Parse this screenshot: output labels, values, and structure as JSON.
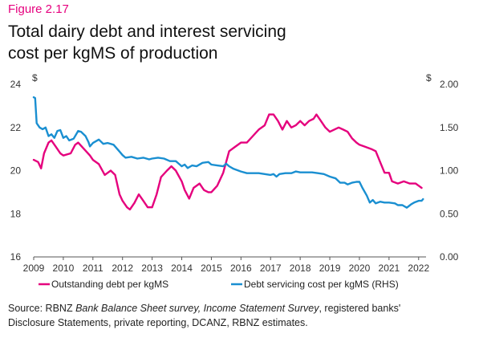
{
  "figure_label": "Figure 2.17",
  "title_line1": "Total dairy debt and interest servicing",
  "title_line2": "cost per kgMS of production",
  "source": {
    "prefix": "Source: RBNZ ",
    "italic1": "Bank Balance Sheet survey, Income Statement Survey",
    "middle": ", registered banks'",
    "line2": "Disclosure Statements, private reporting, DCANZ, RBNZ estimates."
  },
  "colors": {
    "debt": "#e5007d",
    "servicing": "#1a8fd1",
    "axis": "#333333"
  },
  "chart_data": {
    "type": "line",
    "title": "Total dairy debt and interest servicing cost per kgMS of production",
    "x_ticks": [
      "2009",
      "2010",
      "2011",
      "2012",
      "2013",
      "2014",
      "2015",
      "2016",
      "2017",
      "2018",
      "2019",
      "2020",
      "2021",
      "2022"
    ],
    "xlim": [
      2009,
      2022.25
    ],
    "y_left": {
      "unit": "$",
      "ticks": [
        "16",
        "18",
        "20",
        "22",
        "24"
      ],
      "ylim": [
        16,
        24
      ]
    },
    "y_right": {
      "unit": "$",
      "ticks": [
        "0.00",
        "0.50",
        "1.00",
        "1.50",
        "2.00"
      ],
      "ylim": [
        0,
        2
      ]
    },
    "legend_position": "bottom",
    "series": [
      {
        "name": "Outstanding debt per kgMS",
        "axis": "left",
        "points": [
          [
            2009.0,
            20.5
          ],
          [
            2009.15,
            20.4
          ],
          [
            2009.25,
            20.1
          ],
          [
            2009.35,
            20.8
          ],
          [
            2009.5,
            21.3
          ],
          [
            2009.6,
            21.4
          ],
          [
            2009.75,
            21.1
          ],
          [
            2009.9,
            20.8
          ],
          [
            2010.0,
            20.7
          ],
          [
            2010.25,
            20.8
          ],
          [
            2010.4,
            21.2
          ],
          [
            2010.5,
            21.3
          ],
          [
            2010.7,
            21.0
          ],
          [
            2010.9,
            20.7
          ],
          [
            2011.0,
            20.5
          ],
          [
            2011.2,
            20.3
          ],
          [
            2011.4,
            19.8
          ],
          [
            2011.5,
            19.9
          ],
          [
            2011.6,
            20.0
          ],
          [
            2011.75,
            19.8
          ],
          [
            2011.9,
            18.9
          ],
          [
            2012.0,
            18.6
          ],
          [
            2012.15,
            18.3
          ],
          [
            2012.25,
            18.2
          ],
          [
            2012.4,
            18.5
          ],
          [
            2012.55,
            18.9
          ],
          [
            2012.7,
            18.6
          ],
          [
            2012.85,
            18.3
          ],
          [
            2013.0,
            18.3
          ],
          [
            2013.15,
            18.9
          ],
          [
            2013.3,
            19.7
          ],
          [
            2013.5,
            20.0
          ],
          [
            2013.65,
            20.2
          ],
          [
            2013.8,
            20.0
          ],
          [
            2014.0,
            19.5
          ],
          [
            2014.1,
            19.1
          ],
          [
            2014.25,
            18.7
          ],
          [
            2014.4,
            19.2
          ],
          [
            2014.6,
            19.4
          ],
          [
            2014.75,
            19.1
          ],
          [
            2014.9,
            19.0
          ],
          [
            2015.0,
            19.0
          ],
          [
            2015.2,
            19.3
          ],
          [
            2015.4,
            19.9
          ],
          [
            2015.6,
            20.9
          ],
          [
            2015.8,
            21.1
          ],
          [
            2016.0,
            21.3
          ],
          [
            2016.2,
            21.3
          ],
          [
            2016.4,
            21.6
          ],
          [
            2016.6,
            21.9
          ],
          [
            2016.8,
            22.1
          ],
          [
            2016.95,
            22.6
          ],
          [
            2017.1,
            22.6
          ],
          [
            2017.25,
            22.3
          ],
          [
            2017.4,
            21.9
          ],
          [
            2017.55,
            22.3
          ],
          [
            2017.7,
            22.0
          ],
          [
            2017.85,
            22.1
          ],
          [
            2018.0,
            22.3
          ],
          [
            2018.15,
            22.1
          ],
          [
            2018.3,
            22.3
          ],
          [
            2018.45,
            22.4
          ],
          [
            2018.55,
            22.6
          ],
          [
            2018.7,
            22.3
          ],
          [
            2018.85,
            22.0
          ],
          [
            2019.0,
            21.8
          ],
          [
            2019.15,
            21.9
          ],
          [
            2019.3,
            22.0
          ],
          [
            2019.45,
            21.9
          ],
          [
            2019.6,
            21.8
          ],
          [
            2019.75,
            21.5
          ],
          [
            2019.9,
            21.3
          ],
          [
            2020.0,
            21.2
          ],
          [
            2020.2,
            21.1
          ],
          [
            2020.4,
            21.0
          ],
          [
            2020.55,
            20.9
          ],
          [
            2020.7,
            20.4
          ],
          [
            2020.85,
            19.9
          ],
          [
            2021.0,
            19.9
          ],
          [
            2021.1,
            19.5
          ],
          [
            2021.3,
            19.4
          ],
          [
            2021.5,
            19.5
          ],
          [
            2021.7,
            19.4
          ],
          [
            2021.9,
            19.4
          ],
          [
            2022.0,
            19.3
          ],
          [
            2022.1,
            19.2
          ]
        ]
      },
      {
        "name": "Debt servicing cost per kgMS (RHS)",
        "axis": "right",
        "points": [
          [
            2009.0,
            1.85
          ],
          [
            2009.05,
            1.84
          ],
          [
            2009.1,
            1.55
          ],
          [
            2009.2,
            1.5
          ],
          [
            2009.3,
            1.48
          ],
          [
            2009.4,
            1.5
          ],
          [
            2009.5,
            1.4
          ],
          [
            2009.6,
            1.42
          ],
          [
            2009.7,
            1.38
          ],
          [
            2009.8,
            1.46
          ],
          [
            2009.9,
            1.47
          ],
          [
            2010.0,
            1.38
          ],
          [
            2010.1,
            1.4
          ],
          [
            2010.2,
            1.35
          ],
          [
            2010.35,
            1.37
          ],
          [
            2010.5,
            1.46
          ],
          [
            2010.6,
            1.45
          ],
          [
            2010.75,
            1.4
          ],
          [
            2010.85,
            1.33
          ],
          [
            2010.9,
            1.28
          ],
          [
            2011.0,
            1.32
          ],
          [
            2011.2,
            1.36
          ],
          [
            2011.35,
            1.31
          ],
          [
            2011.5,
            1.32
          ],
          [
            2011.7,
            1.3
          ],
          [
            2011.9,
            1.22
          ],
          [
            2012.0,
            1.18
          ],
          [
            2012.1,
            1.15
          ],
          [
            2012.3,
            1.16
          ],
          [
            2012.5,
            1.14
          ],
          [
            2012.7,
            1.15
          ],
          [
            2012.9,
            1.13
          ],
          [
            2013.0,
            1.14
          ],
          [
            2013.2,
            1.15
          ],
          [
            2013.4,
            1.14
          ],
          [
            2013.6,
            1.11
          ],
          [
            2013.8,
            1.11
          ],
          [
            2013.9,
            1.08
          ],
          [
            2014.0,
            1.05
          ],
          [
            2014.1,
            1.07
          ],
          [
            2014.2,
            1.03
          ],
          [
            2014.35,
            1.06
          ],
          [
            2014.5,
            1.05
          ],
          [
            2014.7,
            1.09
          ],
          [
            2014.9,
            1.1
          ],
          [
            2015.0,
            1.07
          ],
          [
            2015.2,
            1.06
          ],
          [
            2015.4,
            1.05
          ],
          [
            2015.5,
            1.08
          ],
          [
            2015.6,
            1.05
          ],
          [
            2015.75,
            1.02
          ],
          [
            2016.0,
            0.99
          ],
          [
            2016.2,
            0.97
          ],
          [
            2016.4,
            0.97
          ],
          [
            2016.6,
            0.97
          ],
          [
            2016.8,
            0.96
          ],
          [
            2017.0,
            0.95
          ],
          [
            2017.1,
            0.96
          ],
          [
            2017.2,
            0.93
          ],
          [
            2017.3,
            0.96
          ],
          [
            2017.5,
            0.97
          ],
          [
            2017.7,
            0.97
          ],
          [
            2017.85,
            0.99
          ],
          [
            2018.0,
            0.98
          ],
          [
            2018.2,
            0.98
          ],
          [
            2018.4,
            0.98
          ],
          [
            2018.6,
            0.97
          ],
          [
            2018.8,
            0.96
          ],
          [
            2019.0,
            0.93
          ],
          [
            2019.2,
            0.91
          ],
          [
            2019.35,
            0.86
          ],
          [
            2019.5,
            0.86
          ],
          [
            2019.6,
            0.84
          ],
          [
            2019.75,
            0.86
          ],
          [
            2019.9,
            0.87
          ],
          [
            2020.0,
            0.87
          ],
          [
            2020.1,
            0.8
          ],
          [
            2020.25,
            0.71
          ],
          [
            2020.35,
            0.63
          ],
          [
            2020.45,
            0.66
          ],
          [
            2020.55,
            0.62
          ],
          [
            2020.7,
            0.64
          ],
          [
            2020.85,
            0.63
          ],
          [
            2021.0,
            0.63
          ],
          [
            2021.2,
            0.62
          ],
          [
            2021.3,
            0.6
          ],
          [
            2021.45,
            0.6
          ],
          [
            2021.6,
            0.57
          ],
          [
            2021.75,
            0.61
          ],
          [
            2021.85,
            0.63
          ],
          [
            2022.0,
            0.65
          ],
          [
            2022.1,
            0.65
          ],
          [
            2022.15,
            0.67
          ]
        ]
      }
    ]
  }
}
